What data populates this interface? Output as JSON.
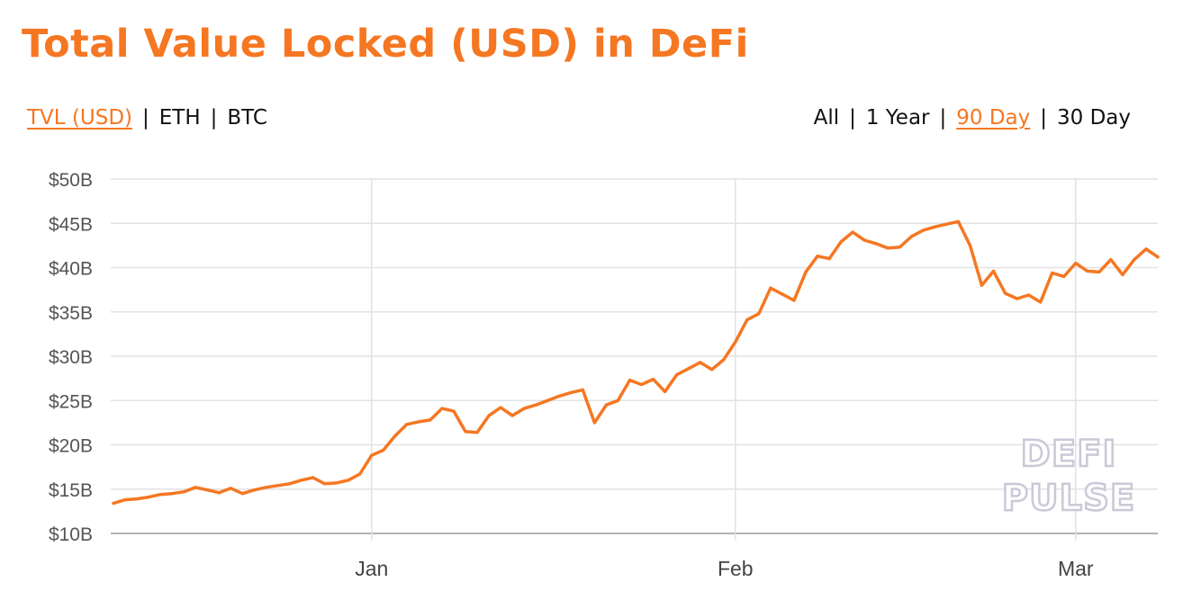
{
  "title": "Total Value Locked (USD) in DeFi",
  "metric_toggle": {
    "items": [
      {
        "label": "TVL (USD)",
        "active": true
      },
      {
        "label": "ETH",
        "active": false
      },
      {
        "label": "BTC",
        "active": false
      }
    ],
    "separator": "|"
  },
  "range_toggle": {
    "items": [
      {
        "label": "All",
        "active": false
      },
      {
        "label": "1 Year",
        "active": false
      },
      {
        "label": "90 Day",
        "active": true
      },
      {
        "label": "30 Day",
        "active": false
      }
    ],
    "separator": "|"
  },
  "watermark": {
    "line1": "DEFI",
    "line2": "PULSE"
  },
  "colors": {
    "accent": "#f57722",
    "line": "#f57722",
    "grid": "#e2e2e2"
  },
  "chart_data": {
    "type": "line",
    "xlabel": "",
    "ylabel": "",
    "x_ticks": [
      "Jan",
      "Feb",
      "Mar"
    ],
    "x_tick_day_index": [
      22,
      53,
      82
    ],
    "y_ticks": [
      "$10B",
      "$15B",
      "$20B",
      "$25B",
      "$30B",
      "$35B",
      "$40B",
      "$45B",
      "$50B"
    ],
    "ylim": [
      10,
      50
    ],
    "y_unit": "$B",
    "grid": true,
    "legend": "none",
    "series": [
      {
        "values": [
          13.4,
          13.8,
          13.9,
          14.1,
          14.4,
          14.5,
          14.7,
          15.2,
          14.9,
          14.6,
          15.1,
          14.5,
          14.9,
          15.2,
          15.4,
          15.6,
          16.0,
          16.3,
          15.6,
          15.7,
          16.0,
          16.7,
          18.8,
          19.4,
          21.0,
          22.3,
          22.6,
          22.8,
          24.1,
          23.8,
          21.5,
          21.4,
          23.3,
          24.2,
          23.3,
          24.1,
          24.5,
          25.0,
          25.5,
          25.9,
          26.2,
          22.5,
          24.5,
          25.0,
          27.3,
          26.8,
          27.4,
          26.0,
          27.9,
          28.6,
          29.3,
          28.5,
          29.6,
          31.6,
          34.1,
          34.8,
          37.7,
          37.0,
          36.3,
          39.5,
          41.3,
          41.0,
          42.9,
          44.0,
          43.1,
          42.7,
          42.2,
          42.3,
          43.5,
          44.2,
          44.6,
          44.9,
          45.2,
          42.5,
          38.0,
          39.6,
          37.1,
          36.5,
          36.9,
          36.1,
          39.4,
          39.0,
          40.5,
          39.6,
          39.5,
          40.9,
          39.2,
          40.9,
          42.1,
          41.2
        ]
      }
    ]
  }
}
